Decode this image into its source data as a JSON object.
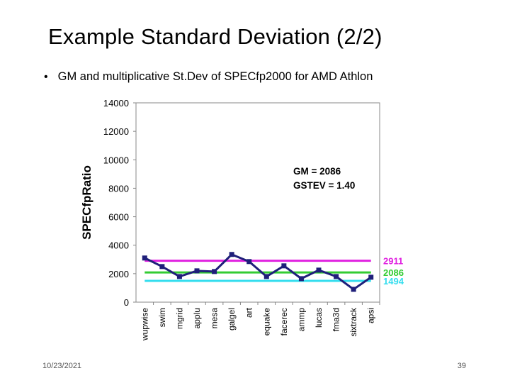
{
  "slide": {
    "title": "Example Standard Deviation (2/2)",
    "bullet": "GM and multiplicative St.Dev of SPECfp2000 for AMD Athlon",
    "date": "10/23/2021",
    "page": "39"
  },
  "colors": {
    "series": "#1f1f7a",
    "upper_line": "#e020e0",
    "gm_line": "#33cc33",
    "lower_line": "#33ddee",
    "axis": "#888888",
    "grid": "#bfbfbf"
  },
  "chart_data": {
    "type": "line",
    "title": "",
    "xlabel": "",
    "ylabel": "SPECfpRatio",
    "ylim": [
      0,
      14000
    ],
    "yticks": [
      0,
      2000,
      4000,
      6000,
      8000,
      10000,
      12000,
      14000
    ],
    "ytick_labels": [
      "0",
      "2000",
      "4000",
      "6000",
      "8000",
      "10000",
      "12000",
      "14000"
    ],
    "grid": false,
    "categories": [
      "wupwise",
      "swim",
      "mgrid",
      "applu",
      "mesa",
      "galgel",
      "art",
      "equake",
      "facerec",
      "ammp",
      "lucas",
      "fma3d",
      "sixtrack",
      "apsi"
    ],
    "series": [
      {
        "name": "SPECfpRatio",
        "values": [
          3100,
          2500,
          1800,
          2200,
          2150,
          3350,
          2850,
          1800,
          2550,
          1650,
          2250,
          1800,
          900,
          1750
        ]
      }
    ],
    "reference_lines": [
      {
        "name": "GM x GSTEV",
        "value": 2911,
        "label": "2911",
        "color": "#e020e0"
      },
      {
        "name": "GM",
        "value": 2086,
        "label": "2086",
        "color": "#33cc33"
      },
      {
        "name": "GM / GSTEV",
        "value": 1494,
        "label": "1494",
        "color": "#33ddee"
      }
    ],
    "annotations": [
      "GM = 2086",
      "GSTEV = 1.40"
    ]
  }
}
